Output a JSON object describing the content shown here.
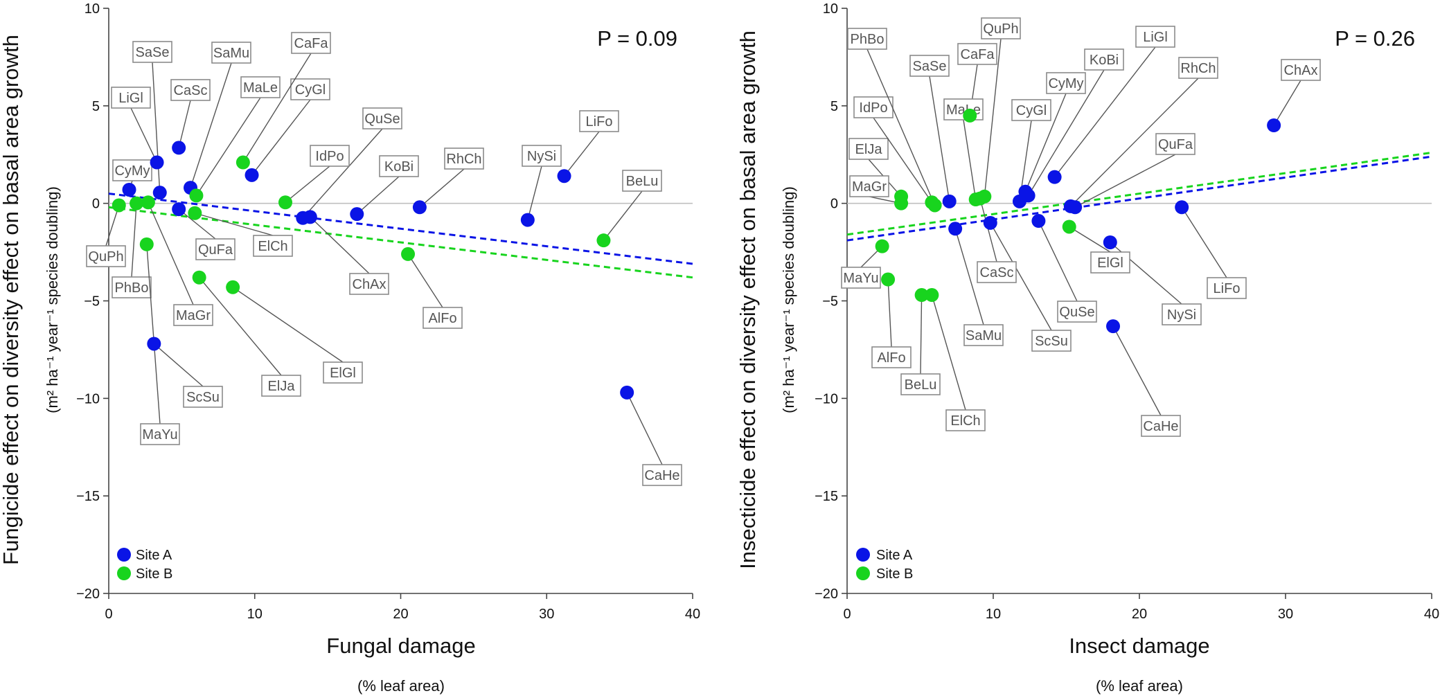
{
  "colors": {
    "site_a": "#0a14e6",
    "site_b": "#18d41e",
    "axis": "#444444",
    "zero_line": "#c0c0c0",
    "label_border": "#8a8a8a",
    "label_text": "#555555"
  },
  "chart_data": [
    {
      "type": "scatter",
      "title": "",
      "ylabel": "Fungicide effect on diversity effect on basal area growth",
      "ylabel_units": "(m² ha⁻¹ year⁻¹ species doubling)",
      "xlabel": "Fungal damage",
      "xlabel_units": "(% leaf area)",
      "xlim": [
        0,
        40
      ],
      "ylim": [
        -20,
        10
      ],
      "xticks": [
        0,
        10,
        20,
        30,
        40
      ],
      "yticks": [
        10,
        5,
        0,
        -5,
        -10,
        -15,
        -20
      ],
      "xtick_labels": [
        "0",
        "10",
        "20",
        "30",
        "40"
      ],
      "ytick_labels": [
        "10",
        "5",
        "0",
        "−5",
        "−10",
        "−15",
        "−20"
      ],
      "annotation": "P = 0.09",
      "legend": {
        "position": "bottom-left",
        "entries": [
          "Site A",
          "Site B"
        ]
      },
      "trend_lines": [
        {
          "series": "Site A",
          "style": "dashed",
          "x": [
            0,
            40
          ],
          "y": [
            0.5,
            -3.1
          ]
        },
        {
          "series": "Site B",
          "style": "dashed",
          "x": [
            0,
            40
          ],
          "y": [
            -0.2,
            -3.8
          ]
        }
      ],
      "series": [
        {
          "name": "Site A",
          "points": [
            {
              "label": "CyMy",
              "x": 1.4,
              "y": 0.7
            },
            {
              "label": "LiGl",
              "x": 3.3,
              "y": 2.1
            },
            {
              "label": "SaSe",
              "x": 3.5,
              "y": 0.55
            },
            {
              "label": "CaSc",
              "x": 4.8,
              "y": 2.85
            },
            {
              "label": "QuFa",
              "x": 4.8,
              "y": -0.3
            },
            {
              "label": "SaMu",
              "x": 5.6,
              "y": 0.8
            },
            {
              "label": "CyGl",
              "x": 9.8,
              "y": 1.45
            },
            {
              "label": "QuSe",
              "x": 13.3,
              "y": -0.75
            },
            {
              "label": "ChAx",
              "x": 13.8,
              "y": -0.7
            },
            {
              "label": "KoBi",
              "x": 17.0,
              "y": -0.55
            },
            {
              "label": "RhCh",
              "x": 21.3,
              "y": -0.2
            },
            {
              "label": "NySi",
              "x": 28.7,
              "y": -0.85
            },
            {
              "label": "LiFo",
              "x": 31.2,
              "y": 1.4
            },
            {
              "label": "ScSu",
              "x": 3.1,
              "y": -7.2
            },
            {
              "label": "CaHe",
              "x": 35.5,
              "y": -9.7
            }
          ]
        },
        {
          "name": "Site B",
          "points": [
            {
              "label": "QuPh",
              "x": 0.7,
              "y": -0.1
            },
            {
              "label": "PhBo",
              "x": 1.9,
              "y": 0.0
            },
            {
              "label": "MaGr",
              "x": 2.7,
              "y": 0.05
            },
            {
              "label": "MaLe",
              "x": 6.0,
              "y": 0.4
            },
            {
              "label": "ElCh",
              "x": 5.9,
              "y": -0.5
            },
            {
              "label": "CaFa",
              "x": 9.2,
              "y": 2.1
            },
            {
              "label": "IdPo",
              "x": 12.1,
              "y": 0.05
            },
            {
              "label": "MaYu",
              "x": 2.6,
              "y": -2.1
            },
            {
              "label": "ElJa",
              "x": 6.2,
              "y": -3.8
            },
            {
              "label": "ElGl",
              "x": 8.5,
              "y": -4.3
            },
            {
              "label": "AlFo",
              "x": 20.5,
              "y": -2.6
            },
            {
              "label": "BeLu",
              "x": 33.9,
              "y": -1.9
            }
          ]
        }
      ]
    },
    {
      "type": "scatter",
      "title": "",
      "ylabel": "Insecticide effect on diversity effect on basal area growth",
      "ylabel_units": "(m² ha⁻¹ year⁻¹ species doubling)",
      "xlabel": "Insect damage",
      "xlabel_units": "(% leaf area)",
      "xlim": [
        0,
        40
      ],
      "ylim": [
        -20,
        10
      ],
      "xticks": [
        0,
        10,
        20,
        30,
        40
      ],
      "yticks": [
        10,
        5,
        0,
        -5,
        -10,
        -15,
        -20
      ],
      "xtick_labels": [
        "0",
        "10",
        "20",
        "30",
        "40"
      ],
      "ytick_labels": [
        "10",
        "5",
        "0",
        "−5",
        "−10",
        "−15",
        "−20"
      ],
      "annotation": "P = 0.26",
      "legend": {
        "position": "bottom-left",
        "entries": [
          "Site A",
          "Site B"
        ]
      },
      "trend_lines": [
        {
          "series": "Site A",
          "style": "dashed",
          "x": [
            0,
            40
          ],
          "y": [
            -1.9,
            2.4
          ]
        },
        {
          "series": "Site B",
          "style": "dashed",
          "x": [
            0,
            40
          ],
          "y": [
            -1.6,
            2.6
          ]
        }
      ],
      "series": [
        {
          "name": "Site A",
          "points": [
            {
              "label": "SaSe",
              "x": 7.0,
              "y": 0.1
            },
            {
              "label": "SaMu",
              "x": 7.4,
              "y": -1.3
            },
            {
              "label": "ScSu",
              "x": 9.8,
              "y": -1.0
            },
            {
              "label": "CyGl",
              "x": 11.8,
              "y": 0.1
            },
            {
              "label": "CyMy",
              "x": 12.2,
              "y": 0.6
            },
            {
              "label": "KoBi",
              "x": 12.4,
              "y": 0.4
            },
            {
              "label": "QuSe",
              "x": 13.1,
              "y": -0.9
            },
            {
              "label": "LiGl",
              "x": 14.2,
              "y": 1.35
            },
            {
              "label": "RhCh",
              "x": 15.3,
              "y": -0.15
            },
            {
              "label": "QuFa",
              "x": 15.6,
              "y": -0.2
            },
            {
              "label": "NySi",
              "x": 18.0,
              "y": -2.0
            },
            {
              "label": "CaHe",
              "x": 18.2,
              "y": -6.3
            },
            {
              "label": "LiFo",
              "x": 22.9,
              "y": -0.2
            },
            {
              "label": "ChAx",
              "x": 29.2,
              "y": 4.0
            }
          ]
        },
        {
          "name": "Site B",
          "points": [
            {
              "label": "MaYu",
              "x": 2.4,
              "y": -2.2
            },
            {
              "label": "AlFo",
              "x": 2.8,
              "y": -3.9
            },
            {
              "label": "ElJa",
              "x": 3.7,
              "y": 0.35
            },
            {
              "label": "MaGr",
              "x": 3.7,
              "y": 0.0
            },
            {
              "label": "IdPo",
              "x": 5.8,
              "y": 0.05
            },
            {
              "label": "PhBo",
              "x": 6.0,
              "y": -0.1
            },
            {
              "label": "BeLu",
              "x": 5.1,
              "y": -4.7
            },
            {
              "label": "ElCh",
              "x": 5.8,
              "y": -4.7
            },
            {
              "label": "CaFa",
              "x": 8.4,
              "y": 4.5
            },
            {
              "label": "MaLe",
              "x": 8.8,
              "y": 0.2
            },
            {
              "label": "CaSc",
              "x": 9.1,
              "y": 0.25
            },
            {
              "label": "QuPh",
              "x": 9.4,
              "y": 0.35
            },
            {
              "label": "ElGl",
              "x": 15.2,
              "y": -1.2
            }
          ]
        }
      ]
    }
  ]
}
